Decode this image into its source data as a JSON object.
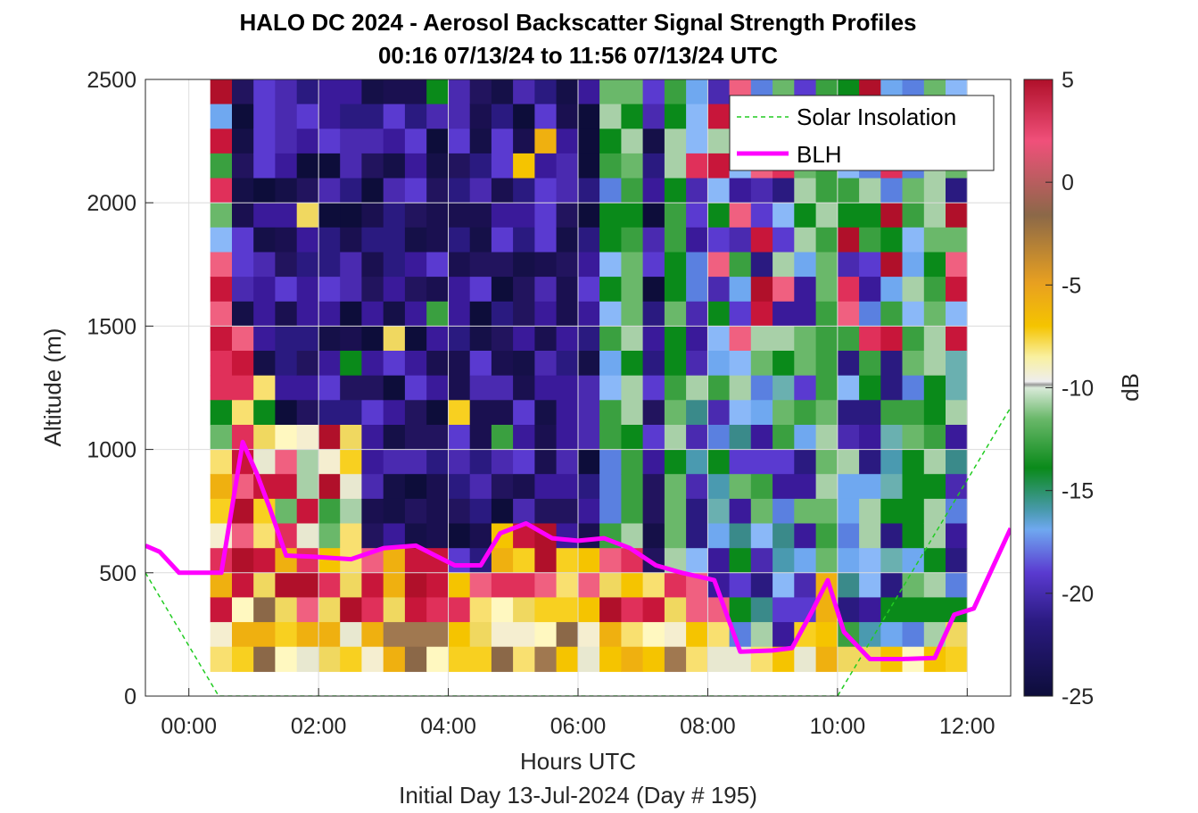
{
  "chart_data": {
    "type": "heatmap",
    "title": "HALO DC 2024 - Aerosol Backscatter Signal Strength Profiles",
    "subtitle": "00:16 07/13/24 to 11:56 07/13/24  UTC",
    "xlabel": "Hours UTC",
    "footer": "Initial Day 13-Jul-2024 (Day # 195)",
    "ylabel": "Altitude (m)",
    "colorbar_label": "dB",
    "xlim": [
      -0.67,
      12.67
    ],
    "ylim": [
      0,
      2500
    ],
    "x_ticks": [
      {
        "value": 0,
        "label": "00:00"
      },
      {
        "value": 2,
        "label": "02:00"
      },
      {
        "value": 4,
        "label": "04:00"
      },
      {
        "value": 6,
        "label": "06:00"
      },
      {
        "value": 8,
        "label": "08:00"
      },
      {
        "value": 10,
        "label": "10:00"
      },
      {
        "value": 12,
        "label": "12:00"
      }
    ],
    "y_ticks": [
      {
        "value": 0,
        "label": "0"
      },
      {
        "value": 500,
        "label": "500"
      },
      {
        "value": 1000,
        "label": "1000"
      },
      {
        "value": 1500,
        "label": "1500"
      },
      {
        "value": 2000,
        "label": "2000"
      },
      {
        "value": 2500,
        "label": "2500"
      }
    ],
    "clim": [
      -25,
      5
    ],
    "colorbar_ticks": [
      {
        "value": 5,
        "label": "5"
      },
      {
        "value": 0,
        "label": "0"
      },
      {
        "value": -5,
        "label": "-5"
      },
      {
        "value": -10,
        "label": "-10"
      },
      {
        "value": -15,
        "label": "-15"
      },
      {
        "value": -20,
        "label": "-20"
      },
      {
        "value": -25,
        "label": "-25"
      }
    ],
    "grid": true,
    "legend": {
      "placement": "top-right",
      "entries": [
        {
          "name": "Solar Insolation",
          "style": "dashed",
          "color": "#22cc22"
        },
        {
          "name": "BLH",
          "style": "solid",
          "color": "#ff00ff"
        }
      ]
    },
    "heatmap_cells": {
      "x_range": [
        0.33,
        12.0
      ],
      "y_range": [
        100,
        2500
      ],
      "rows": 24,
      "cols": 35
    },
    "series": [
      {
        "name": "BLH",
        "x": [
          -0.67,
          -0.45,
          -0.15,
          0.15,
          0.5,
          0.83,
          1.05,
          1.25,
          1.5,
          1.9,
          2.5,
          3.0,
          3.5,
          3.8,
          4.1,
          4.5,
          4.8,
          5.2,
          5.6,
          6.0,
          6.4,
          6.8,
          7.2,
          7.6,
          8.1,
          8.5,
          9.0,
          9.3,
          9.6,
          9.85,
          10.1,
          10.5,
          11.0,
          11.5,
          11.8,
          12.1,
          12.67
        ],
        "y": [
          610,
          585,
          500,
          500,
          500,
          1030,
          900,
          760,
          570,
          565,
          555,
          600,
          610,
          570,
          530,
          530,
          660,
          700,
          640,
          630,
          640,
          600,
          530,
          500,
          470,
          180,
          185,
          195,
          340,
          470,
          260,
          150,
          150,
          155,
          330,
          355,
          680
        ]
      },
      {
        "name": "Solar Insolation",
        "x": [
          -0.67,
          0.46,
          10.0,
          12.67
        ],
        "y": [
          500,
          0,
          0,
          1170
        ]
      }
    ]
  }
}
